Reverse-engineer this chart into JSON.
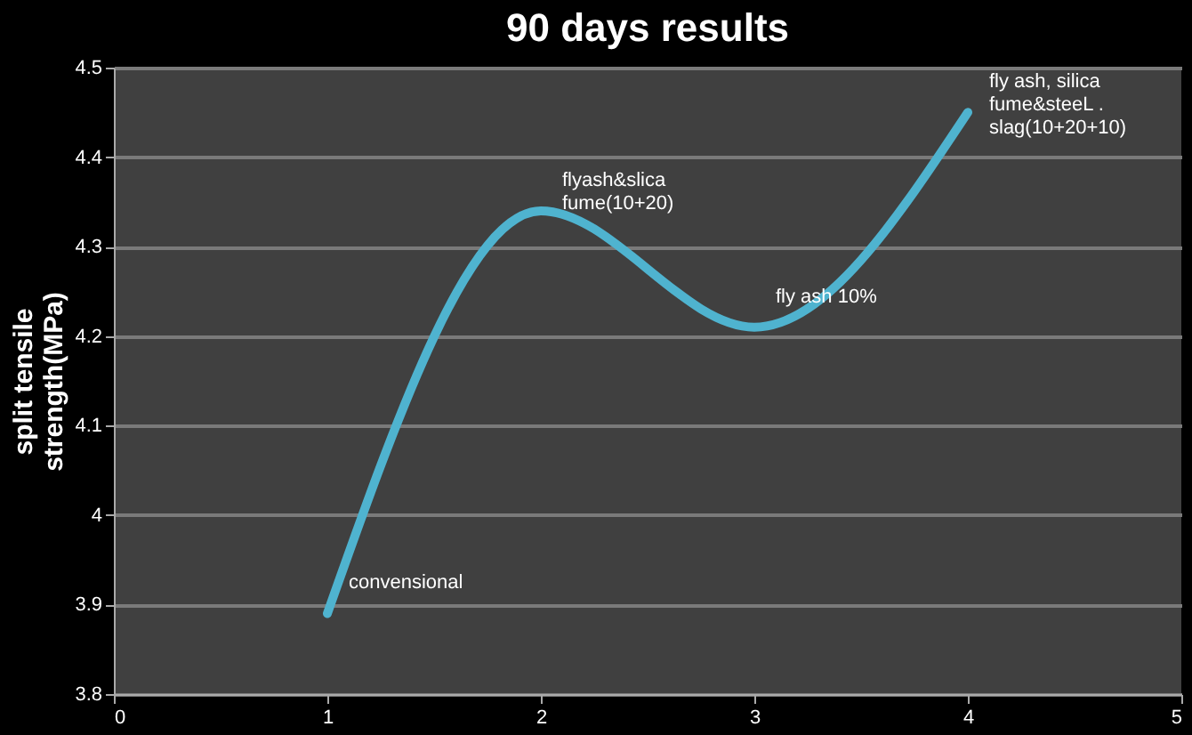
{
  "chart_data": {
    "type": "line",
    "title": "90 days results",
    "ylabel": "split tensile\nstrength(MPa)",
    "x": [
      1,
      2,
      3,
      4
    ],
    "series": [
      {
        "color": "#4fb3cf",
        "values": [
          3.89,
          4.34,
          4.21,
          4.45
        ]
      }
    ],
    "xlim": [
      0,
      5
    ],
    "xticks": [
      0,
      1,
      2,
      3,
      4,
      5
    ],
    "ylim": [
      3.8,
      4.5
    ],
    "yticks": [
      3.8,
      3.9,
      4,
      4.1,
      4.2,
      4.3,
      4.4,
      4.5
    ],
    "grid": "y",
    "marker": "none",
    "line_style": "solid",
    "annotations": [
      {
        "text": "convensional",
        "x": 1,
        "y": 3.89
      },
      {
        "text": "flyash&slica\nfume(10+20)",
        "x": 2,
        "y": 4.34
      },
      {
        "text": "fly ash 10%",
        "x": 3,
        "y": 4.21
      },
      {
        "text": "fly ash, silica\nfume&steeL .\nslag(10+20+10)",
        "x": 4,
        "y": 4.45
      }
    ]
  }
}
